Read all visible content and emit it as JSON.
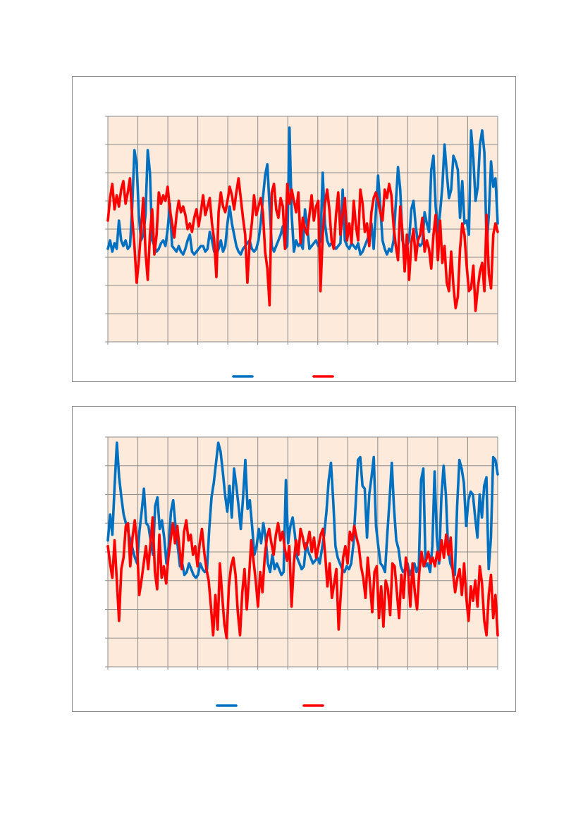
{
  "chart_data": [
    {
      "type": "line",
      "title": "",
      "xlabel": "",
      "ylabel": "",
      "ylim": [
        0,
        8
      ],
      "grid": true,
      "legend": "bottom-center",
      "plot_background": "#FDEADA",
      "series": [
        {
          "color": "#0070C0",
          "values": [
            3.3,
            3.6,
            3.2,
            3.5,
            3.3,
            4.3,
            3.6,
            3.4,
            3.6,
            3.3,
            3.4,
            4.8,
            6.8,
            6.3,
            4.5,
            3.6,
            3.8,
            4.5,
            6.8,
            6.0,
            3.6,
            3.4,
            3.2,
            3.3,
            3.5,
            3.6,
            3.4,
            4.0,
            4.9,
            3.4,
            3.3,
            3.2,
            3.4,
            3.2,
            3.1,
            3.3,
            3.6,
            3.8,
            3.2,
            3.1,
            3.2,
            3.3,
            3.4,
            3.4,
            3.2,
            3.3,
            3.9,
            3.6,
            3.2,
            3.1,
            3.3,
            3.6,
            3.2,
            3.4,
            4.2,
            4.8,
            4.2,
            3.8,
            3.4,
            3.2,
            3.1,
            3.3,
            3.4,
            3.5,
            3.6,
            3.3,
            3.2,
            3.3,
            3.6,
            4.2,
            5.1,
            5.9,
            6.3,
            4.8,
            3.4,
            3.2,
            3.4,
            3.6,
            3.8,
            4.1,
            3.3,
            3.4,
            7.6,
            4.5,
            3.2,
            3.6,
            3.4,
            3.5,
            3.3,
            4.7,
            4.1,
            3.3,
            3.4,
            3.5,
            3.6,
            3.4,
            3.6,
            6.0,
            4.2,
            3.6,
            3.4,
            3.5,
            3.4,
            3.3,
            3.4,
            3.5,
            5.4,
            3.6,
            3.4,
            3.3,
            3.5,
            3.4,
            3.3,
            3.5,
            3.1,
            3.2,
            3.4,
            3.6,
            3.8,
            4.2,
            3.3,
            4.6,
            5.9,
            4.8,
            3.6,
            3.3,
            3.1,
            3.3,
            3.2,
            3.6,
            4.9,
            6.2,
            5.4,
            3.6,
            3.3,
            3.4,
            3.6,
            4.7,
            5.0,
            4.1,
            3.5,
            3.4,
            3.5,
            4.6,
            4.2,
            3.9,
            6.1,
            6.6,
            4.8,
            3.9,
            4.6,
            5.5,
            7.0,
            6.0,
            5.1,
            5.4,
            6.6,
            6.4,
            6.1,
            4.4,
            5.7,
            4.2,
            4.3,
            3.8,
            7.5,
            6.5,
            5.0,
            5.5,
            7.0,
            7.5,
            6.7,
            3.4,
            4.5,
            6.4,
            5.5,
            5.8,
            4.2
          ]
        },
        {
          "color": "#FF0000",
          "values": [
            4.3,
            5.1,
            5.6,
            4.7,
            5.2,
            4.8,
            5.4,
            5.7,
            4.9,
            5.3,
            5.8,
            4.4,
            3.4,
            2.1,
            2.9,
            4.0,
            5.1,
            3.2,
            2.2,
            3.8,
            4.7,
            3.1,
            3.8,
            5.3,
            4.9,
            5.2,
            5.0,
            5.5,
            4.7,
            4.2,
            3.7,
            4.5,
            5.0,
            4.6,
            4.8,
            4.5,
            4.0,
            4.2,
            3.9,
            4.4,
            4.7,
            4.1,
            4.6,
            5.2,
            4.5,
            4.8,
            5.1,
            4.2,
            3.6,
            2.3,
            4.6,
            5.3,
            4.8,
            4.6,
            5.0,
            5.5,
            5.2,
            4.7,
            5.3,
            5.8,
            5.1,
            4.4,
            3.8,
            2.1,
            3.5,
            4.2,
            5.2,
            4.5,
            4.8,
            5.1,
            4.6,
            3.2,
            2.6,
            1.3,
            5.3,
            5.6,
            4.7,
            4.4,
            5.1,
            4.8,
            3.3,
            5.6,
            4.9,
            5.4,
            5.0,
            4.6,
            5.3,
            3.5,
            4.4,
            4.0,
            3.8,
            4.5,
            5.2,
            4.3,
            4.8,
            5.0,
            1.8,
            3.8,
            4.9,
            5.4,
            4.7,
            3.6,
            3.3,
            4.5,
            5.3,
            3.8,
            4.5,
            5.1,
            3.6,
            4.2,
            3.5,
            5.0,
            4.1,
            3.6,
            5.4,
            4.9,
            3.9,
            4.2,
            3.4,
            4.6,
            5.1,
            5.3,
            5.0,
            4.6,
            4.3,
            5.4,
            5.1,
            5.6,
            5.2,
            4.1,
            3.4,
            2.9,
            4.8,
            3.9,
            2.5,
            3.8,
            2.2,
            3.5,
            4.0,
            2.9,
            3.6,
            3.8,
            4.4,
            3.2,
            3.6,
            3.3,
            2.6,
            3.8,
            4.5,
            2.9,
            4.3,
            2.8,
            3.4,
            2.1,
            1.8,
            3.2,
            2.0,
            1.2,
            1.6,
            3.3,
            4.2,
            3.8,
            2.7,
            1.8,
            1.9,
            2.7,
            1.1,
            1.9,
            2.5,
            2.8,
            1.8,
            4.5,
            2.4,
            1.9,
            3.8,
            4.2,
            3.9
          ]
        }
      ]
    },
    {
      "type": "line",
      "title": "",
      "xlabel": "",
      "ylabel": "",
      "ylim": [
        0,
        8
      ],
      "grid": true,
      "legend": "bottom-center",
      "plot_background": "#FDEADA",
      "series": [
        {
          "color": "#0070C0",
          "values": [
            4.4,
            5.3,
            4.6,
            6.3,
            7.8,
            6.6,
            5.9,
            5.3,
            5.0,
            4.7,
            4.4,
            4.1,
            3.8,
            3.6,
            4.7,
            5.4,
            6.2,
            5.0,
            4.9,
            4.4,
            3.9,
            5.6,
            5.9,
            4.8,
            5.1,
            4.5,
            3.6,
            4.2,
            5.4,
            5.8,
            4.9,
            4.2,
            3.5,
            3.6,
            3.2,
            3.3,
            3.6,
            3.4,
            3.2,
            3.1,
            3.2,
            3.6,
            3.4,
            3.3,
            3.4,
            4.8,
            5.9,
            6.4,
            7.1,
            7.8,
            7.5,
            6.8,
            6.0,
            5.4,
            6.3,
            5.2,
            6.9,
            6.3,
            5.6,
            4.8,
            5.9,
            7.2,
            5.5,
            5.8,
            4.9,
            3.9,
            4.2,
            4.8,
            4.3,
            5.0,
            4.5,
            3.6,
            3.3,
            3.9,
            3.4,
            3.6,
            3.4,
            3.2,
            3.3,
            6.5,
            4.3,
            4.9,
            5.2,
            4.6,
            3.8,
            3.6,
            3.4,
            3.5,
            4.3,
            4.0,
            3.8,
            3.6,
            3.7,
            3.8,
            3.6,
            4.1,
            4.6,
            5.4,
            6.5,
            7.1,
            5.8,
            4.2,
            3.8,
            3.6,
            3.4,
            3.3,
            3.5,
            3.4,
            3.6,
            4.3,
            5.7,
            7.2,
            7.3,
            6.3,
            6.2,
            4.5,
            6.0,
            6.6,
            7.3,
            4.9,
            4.2,
            3.6,
            3.5,
            3.3,
            4.6,
            5.8,
            7.1,
            5.5,
            4.4,
            4.1,
            3.5,
            3.3,
            3.4,
            3.6,
            3.2,
            3.4,
            3.6,
            3.3,
            3.5,
            6.5,
            6.9,
            3.5,
            3.6,
            3.3,
            4.2,
            6.8,
            4.5,
            3.6,
            5.9,
            7.0,
            6.0,
            4.1,
            3.6,
            3.4,
            3.2,
            5.6,
            7.2,
            6.9,
            6.4,
            4.9,
            5.8,
            6.1,
            6.0,
            5.2,
            4.5,
            6.0,
            5.2,
            6.3,
            6.6,
            3.4,
            4.5,
            7.3,
            7.2,
            6.7
          ]
        },
        {
          "color": "#FF0000",
          "values": [
            4.2,
            3.6,
            3.1,
            4.4,
            3.0,
            1.6,
            3.4,
            3.8,
            4.9,
            5.0,
            3.5,
            4.5,
            5.1,
            4.3,
            2.5,
            3.0,
            3.6,
            4.2,
            3.4,
            4.3,
            5.2,
            3.3,
            2.7,
            4.6,
            3.1,
            3.5,
            2.9,
            3.8,
            4.4,
            5.0,
            4.3,
            4.9,
            4.1,
            3.4,
            4.7,
            5.1,
            4.4,
            4.6,
            3.9,
            4.2,
            3.5,
            4.3,
            4.8,
            4.0,
            3.4,
            3.0,
            2.1,
            1.1,
            2.5,
            1.3,
            3.6,
            2.5,
            1.5,
            1.0,
            2.8,
            3.5,
            3.8,
            3.2,
            1.9,
            1.1,
            2.6,
            3.4,
            2.0,
            3.1,
            4.4,
            3.7,
            3.0,
            2.1,
            3.3,
            2.6,
            3.8,
            4.5,
            4.8,
            4.3,
            3.9,
            4.6,
            5.0,
            4.4,
            4.7,
            4.1,
            3.7,
            4.2,
            2.1,
            3.6,
            4.4,
            3.9,
            4.8,
            4.5,
            4.1,
            4.3,
            4.7,
            4.0,
            4.5,
            3.8,
            4.2,
            4.6,
            4.8,
            3.9,
            2.8,
            3.6,
            2.4,
            2.9,
            3.4,
            1.3,
            2.6,
            3.8,
            4.2,
            3.6,
            4.7,
            4.4,
            4.9,
            4.5,
            4.2,
            3.5,
            3.1,
            2.4,
            3.8,
            2.9,
            1.9,
            3.3,
            3.5,
            1.7,
            2.8,
            1.4,
            3.0,
            2.7,
            1.8,
            3.6,
            3.5,
            2.6,
            1.7,
            3.2,
            2.4,
            3.8,
            3.3,
            2.1,
            3.6,
            2.6,
            2.0,
            3.3,
            4.0,
            3.5,
            3.7,
            4.0,
            3.6,
            3.8,
            3.5,
            4.0,
            3.7,
            4.4,
            3.8,
            4.6,
            3.9,
            4.5,
            3.3,
            2.6,
            3.1,
            3.4,
            2.5,
            3.6,
            2.4,
            1.6,
            2.8,
            2.3,
            3.0,
            2.1,
            3.5,
            2.9,
            1.6,
            1.1,
            2.5,
            3.2,
            1.7,
            2.5,
            1.1
          ]
        }
      ]
    }
  ]
}
